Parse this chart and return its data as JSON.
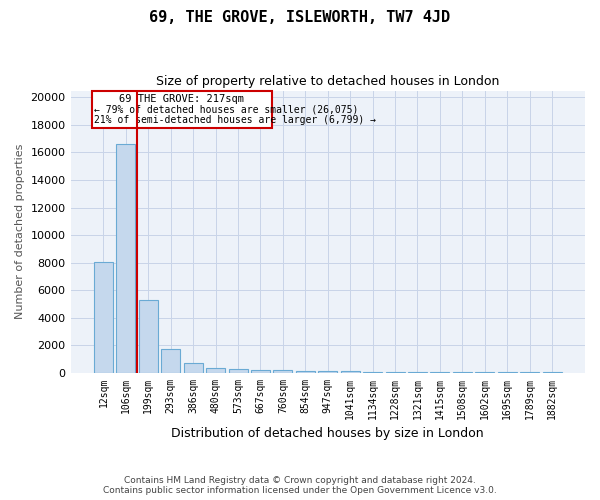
{
  "title": "69, THE GROVE, ISLEWORTH, TW7 4JD",
  "subtitle": "Size of property relative to detached houses in London",
  "xlabel": "Distribution of detached houses by size in London",
  "ylabel": "Number of detached properties",
  "bar_color": "#c5d8ed",
  "bar_edge_color": "#6aaad4",
  "categories": [
    "12sqm",
    "106sqm",
    "199sqm",
    "293sqm",
    "386sqm",
    "480sqm",
    "573sqm",
    "667sqm",
    "760sqm",
    "854sqm",
    "947sqm",
    "1041sqm",
    "1134sqm",
    "1228sqm",
    "1321sqm",
    "1415sqm",
    "1508sqm",
    "1602sqm",
    "1695sqm",
    "1789sqm",
    "1882sqm"
  ],
  "values": [
    8050,
    16600,
    5300,
    1750,
    700,
    350,
    250,
    210,
    175,
    155,
    110,
    110,
    85,
    80,
    80,
    80,
    60,
    55,
    50,
    50,
    45
  ],
  "ylim": [
    0,
    20500
  ],
  "yticks": [
    0,
    2000,
    4000,
    6000,
    8000,
    10000,
    12000,
    14000,
    16000,
    18000,
    20000
  ],
  "property_label": "69 THE GROVE: 217sqm",
  "annotation_line1": "← 79% of detached houses are smaller (26,075)",
  "annotation_line2": "21% of semi-detached houses are larger (6,799) →",
  "annotation_color": "#cc0000",
  "vline_x_index": 1.5,
  "grid_color": "#c8d4e8",
  "background_color": "#edf2f9",
  "footer_line1": "Contains HM Land Registry data © Crown copyright and database right 2024.",
  "footer_line2": "Contains public sector information licensed under the Open Government Licence v3.0."
}
